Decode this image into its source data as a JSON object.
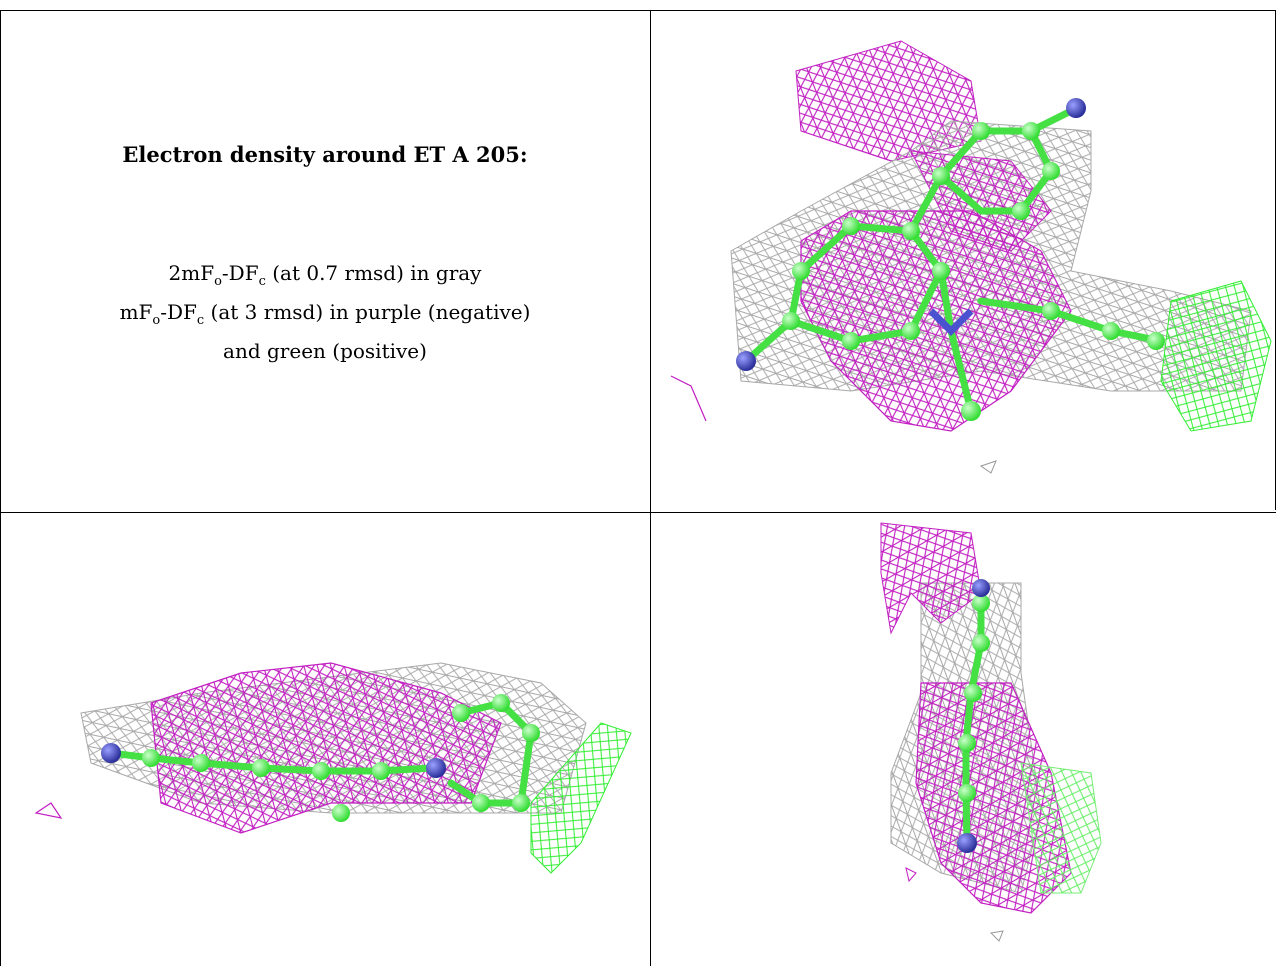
{
  "title": "Electron density around ET A 205:",
  "legend": {
    "line1_a": "2mF",
    "line1_sub_o": "o",
    "line1_b": "-DF",
    "line1_sub_c": "c",
    "line1_c": " (at 0.7 rmsd) in gray",
    "line2_a": "mF",
    "line2_sub_o": "o",
    "line2_b": "-DF",
    "line2_sub_c": "c",
    "line2_c": " (at 3 rmsd) in purple (negative)",
    "line3": "and green (positive)"
  },
  "colors": {
    "gray_mesh": "#a8a8a8",
    "purple_mesh": "#c21fc2",
    "green_mesh": "#33ee33",
    "carbon": "#55ee55",
    "nitrogen": "#3a42c0"
  },
  "panels": [
    {
      "name": "view-1",
      "description_icon": "density-mesh-image"
    },
    {
      "name": "view-2",
      "description_icon": "density-mesh-image"
    },
    {
      "name": "view-3",
      "description_icon": "density-mesh-image"
    }
  ]
}
